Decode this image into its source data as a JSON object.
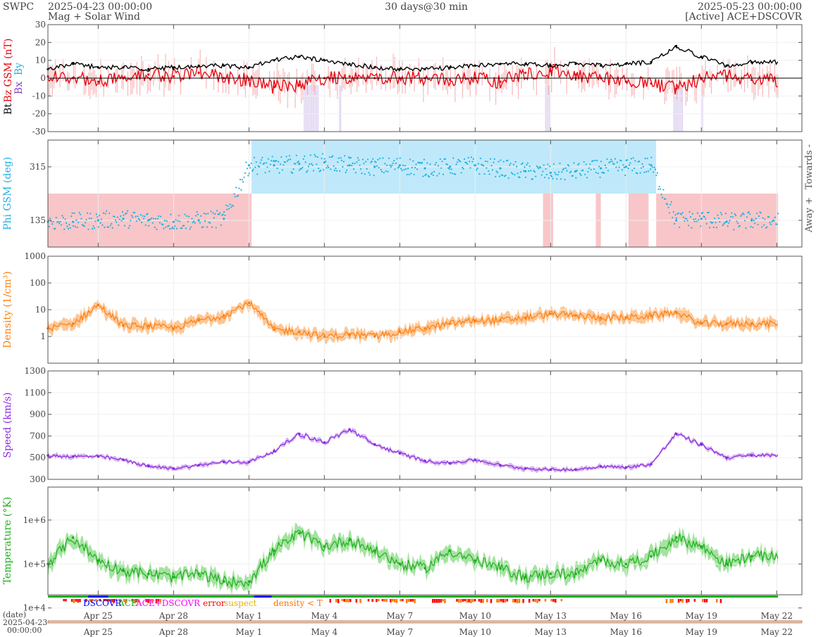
{
  "header": {
    "source": "SWPC",
    "start_time": "2025-04-23 00:00:00",
    "subtitle": "Mag + Solar Wind",
    "span": "30 days@30 min",
    "end_time": "2025-05-23 00:00:00",
    "spacecraft": "[Active] ACE+DSCOVR"
  },
  "colors": {
    "bt": "#000000",
    "bz": "#e8000b",
    "bx": "#7f3fbf",
    "by": "#1fb0e0",
    "phi": "#1fb0e0",
    "phi_toward": "#bfe9fa",
    "phi_away": "#f8c6c9",
    "density": "#ff7f0e",
    "density_band": "#fdc796",
    "speed": "#8a2be2",
    "speed_band": "#d7b3f0",
    "temperature": "#1fb01f",
    "temperature_band": "#a4e3a0",
    "dscovr": "#0000ff",
    "ace": "#22aa22",
    "ace_dscovr": "#ff00ff",
    "error": "#ff0000",
    "suspect": "#e8b000",
    "density_lt_t": "#ff7700"
  },
  "x_axis": {
    "start": "2025-04-23",
    "end": "2025-05-23",
    "ticks": [
      {
        "day": 2,
        "label": "Apr 25"
      },
      {
        "day": 5,
        "label": "Apr 28"
      },
      {
        "day": 8,
        "label": "May 1"
      },
      {
        "day": 11,
        "label": "May 4"
      },
      {
        "day": 14,
        "label": "May 7"
      },
      {
        "day": 17,
        "label": "May 10"
      },
      {
        "day": 20,
        "label": "May 13"
      },
      {
        "day": 23,
        "label": "May 16"
      },
      {
        "day": 26,
        "label": "May 19"
      },
      {
        "day": 29,
        "label": "May 22"
      }
    ],
    "date_label": "(date)",
    "start_date_label": "2025-04-23",
    "start_clock_label": "00:00:00"
  },
  "panels": {
    "mag": {
      "ylabel_bt": "Bt",
      "ylabel_bz": "Bz GSM (nT)",
      "ylabel_bx": "Bx",
      "ylabel_by": "By",
      "ylim": [
        -30,
        30
      ],
      "ticks": [
        "30",
        "20",
        "10",
        "0",
        "-10",
        "-20",
        "-30"
      ]
    },
    "phi": {
      "ylabel": "Phi GSM (deg)",
      "ylim": [
        45,
        405
      ],
      "ticks": [
        "315",
        "135"
      ],
      "right_top": "Towards -",
      "right_bottom": "Away +"
    },
    "density": {
      "ylabel": "Density (1/cm³)",
      "log": true,
      "ticks": [
        "1000",
        "100",
        "10",
        "1"
      ]
    },
    "speed": {
      "ylabel": "Speed (km/s)",
      "ylim": [
        300,
        1300
      ],
      "ticks": [
        "1300",
        "1100",
        "900",
        "700",
        "500",
        "300"
      ]
    },
    "temperature": {
      "ylabel": "Temperature (°K)",
      "log": true,
      "ticks": [
        "1e+6",
        "1e+5",
        "1e+4"
      ]
    }
  },
  "legend": {
    "dscovr": "DSCOVR",
    "ace": "ACE",
    "ace_dscovr": "ACE+DSCOVR",
    "error": "error",
    "suspect": "suspect",
    "density_lt_t": "density < T"
  },
  "chart_data": [
    {
      "type": "line",
      "title": "Bt / Bz GSM (nT)",
      "x_unit": "days since 2025-04-23",
      "ylim": [
        -30,
        30
      ],
      "series": [
        {
          "name": "Bt",
          "x": [
            0,
            1,
            2,
            3,
            4,
            5,
            6,
            7,
            8,
            9,
            10,
            11,
            12,
            13,
            14,
            15,
            16,
            17,
            18,
            19,
            20,
            21,
            22,
            23,
            24,
            25,
            26,
            27,
            28,
            29
          ],
          "values": [
            5,
            8,
            6,
            6,
            5,
            6,
            7,
            7,
            6,
            10,
            12,
            10,
            8,
            6,
            5,
            5,
            6,
            7,
            8,
            8,
            7,
            8,
            7,
            8,
            9,
            18,
            12,
            7,
            9,
            null
          ]
        },
        {
          "name": "Bz GSM",
          "x": [
            0,
            1,
            2,
            3,
            4,
            5,
            6,
            7,
            8,
            9,
            10,
            11,
            12,
            13,
            14,
            15,
            16,
            17,
            18,
            19,
            20,
            21,
            22,
            23,
            24,
            25,
            26,
            27,
            28,
            29
          ],
          "values": [
            1,
            0,
            -2,
            0,
            2,
            1,
            3,
            0,
            -1,
            -5,
            -4,
            0,
            1,
            0,
            0,
            0,
            -1,
            0,
            -2,
            3,
            4,
            2,
            0,
            -2,
            -3,
            -6,
            0,
            1,
            -1,
            null
          ]
        }
      ]
    },
    {
      "type": "scatter",
      "title": "Phi GSM (deg)",
      "x_unit": "days since 2025-04-23",
      "ylim": [
        45,
        405
      ],
      "series": [
        {
          "name": "Phi GSM",
          "x": [
            0,
            1,
            2,
            3,
            4,
            5,
            6,
            7,
            8,
            9,
            10,
            11,
            12,
            13,
            14,
            15,
            16,
            17,
            18,
            19,
            20,
            21,
            22,
            23,
            24,
            25,
            26,
            27,
            28
          ],
          "values": [
            130,
            130,
            135,
            140,
            135,
            130,
            135,
            140,
            320,
            320,
            325,
            330,
            320,
            315,
            320,
            310,
            315,
            320,
            310,
            300,
            295,
            300,
            310,
            315,
            320,
            135,
            140,
            130,
            135
          ]
        }
      ]
    },
    {
      "type": "line",
      "title": "Density (1/cm³)",
      "x_unit": "days since 2025-04-23",
      "log": true,
      "series": [
        {
          "name": "Density",
          "x": [
            0,
            1,
            2,
            3,
            4,
            5,
            6,
            7,
            8,
            9,
            10,
            11,
            12,
            13,
            14,
            15,
            16,
            17,
            18,
            19,
            20,
            21,
            22,
            23,
            24,
            25,
            26,
            27,
            28
          ],
          "values": [
            2,
            3,
            15,
            2.5,
            2.5,
            2,
            4,
            6,
            18,
            1.8,
            1.5,
            1,
            1.2,
            1,
            1.5,
            2,
            3,
            4,
            4,
            5,
            7,
            6,
            5,
            5,
            6,
            8,
            3,
            3,
            3
          ]
        }
      ]
    },
    {
      "type": "line",
      "title": "Speed (km/s)",
      "x_unit": "days since 2025-04-23",
      "ylim": [
        300,
        1300
      ],
      "series": [
        {
          "name": "Speed",
          "x": [
            0,
            1,
            2,
            3,
            4,
            5,
            6,
            7,
            8,
            9,
            10,
            11,
            12,
            13,
            14,
            15,
            16,
            17,
            18,
            19,
            20,
            21,
            22,
            23,
            24,
            25,
            26,
            27,
            28
          ],
          "values": [
            520,
            510,
            510,
            480,
            420,
            400,
            430,
            460,
            460,
            560,
            720,
            640,
            760,
            620,
            540,
            470,
            450,
            480,
            430,
            400,
            390,
            390,
            420,
            410,
            440,
            720,
            620,
            500,
            520
          ]
        }
      ]
    },
    {
      "type": "line",
      "title": "Temperature (°K)",
      "x_unit": "days since 2025-04-23",
      "log": true,
      "series": [
        {
          "name": "Temperature",
          "x": [
            0,
            1,
            2,
            3,
            4,
            5,
            6,
            7,
            8,
            9,
            10,
            11,
            12,
            13,
            14,
            15,
            16,
            17,
            18,
            19,
            20,
            21,
            22,
            23,
            24,
            25,
            26,
            27,
            28
          ],
          "values": [
            100000,
            400000,
            120000,
            70000,
            60000,
            50000,
            60000,
            40000,
            40000,
            200000,
            500000,
            250000,
            350000,
            200000,
            100000,
            80000,
            200000,
            120000,
            80000,
            50000,
            60000,
            60000,
            120000,
            100000,
            150000,
            400000,
            250000,
            100000,
            150000
          ]
        }
      ]
    }
  ]
}
